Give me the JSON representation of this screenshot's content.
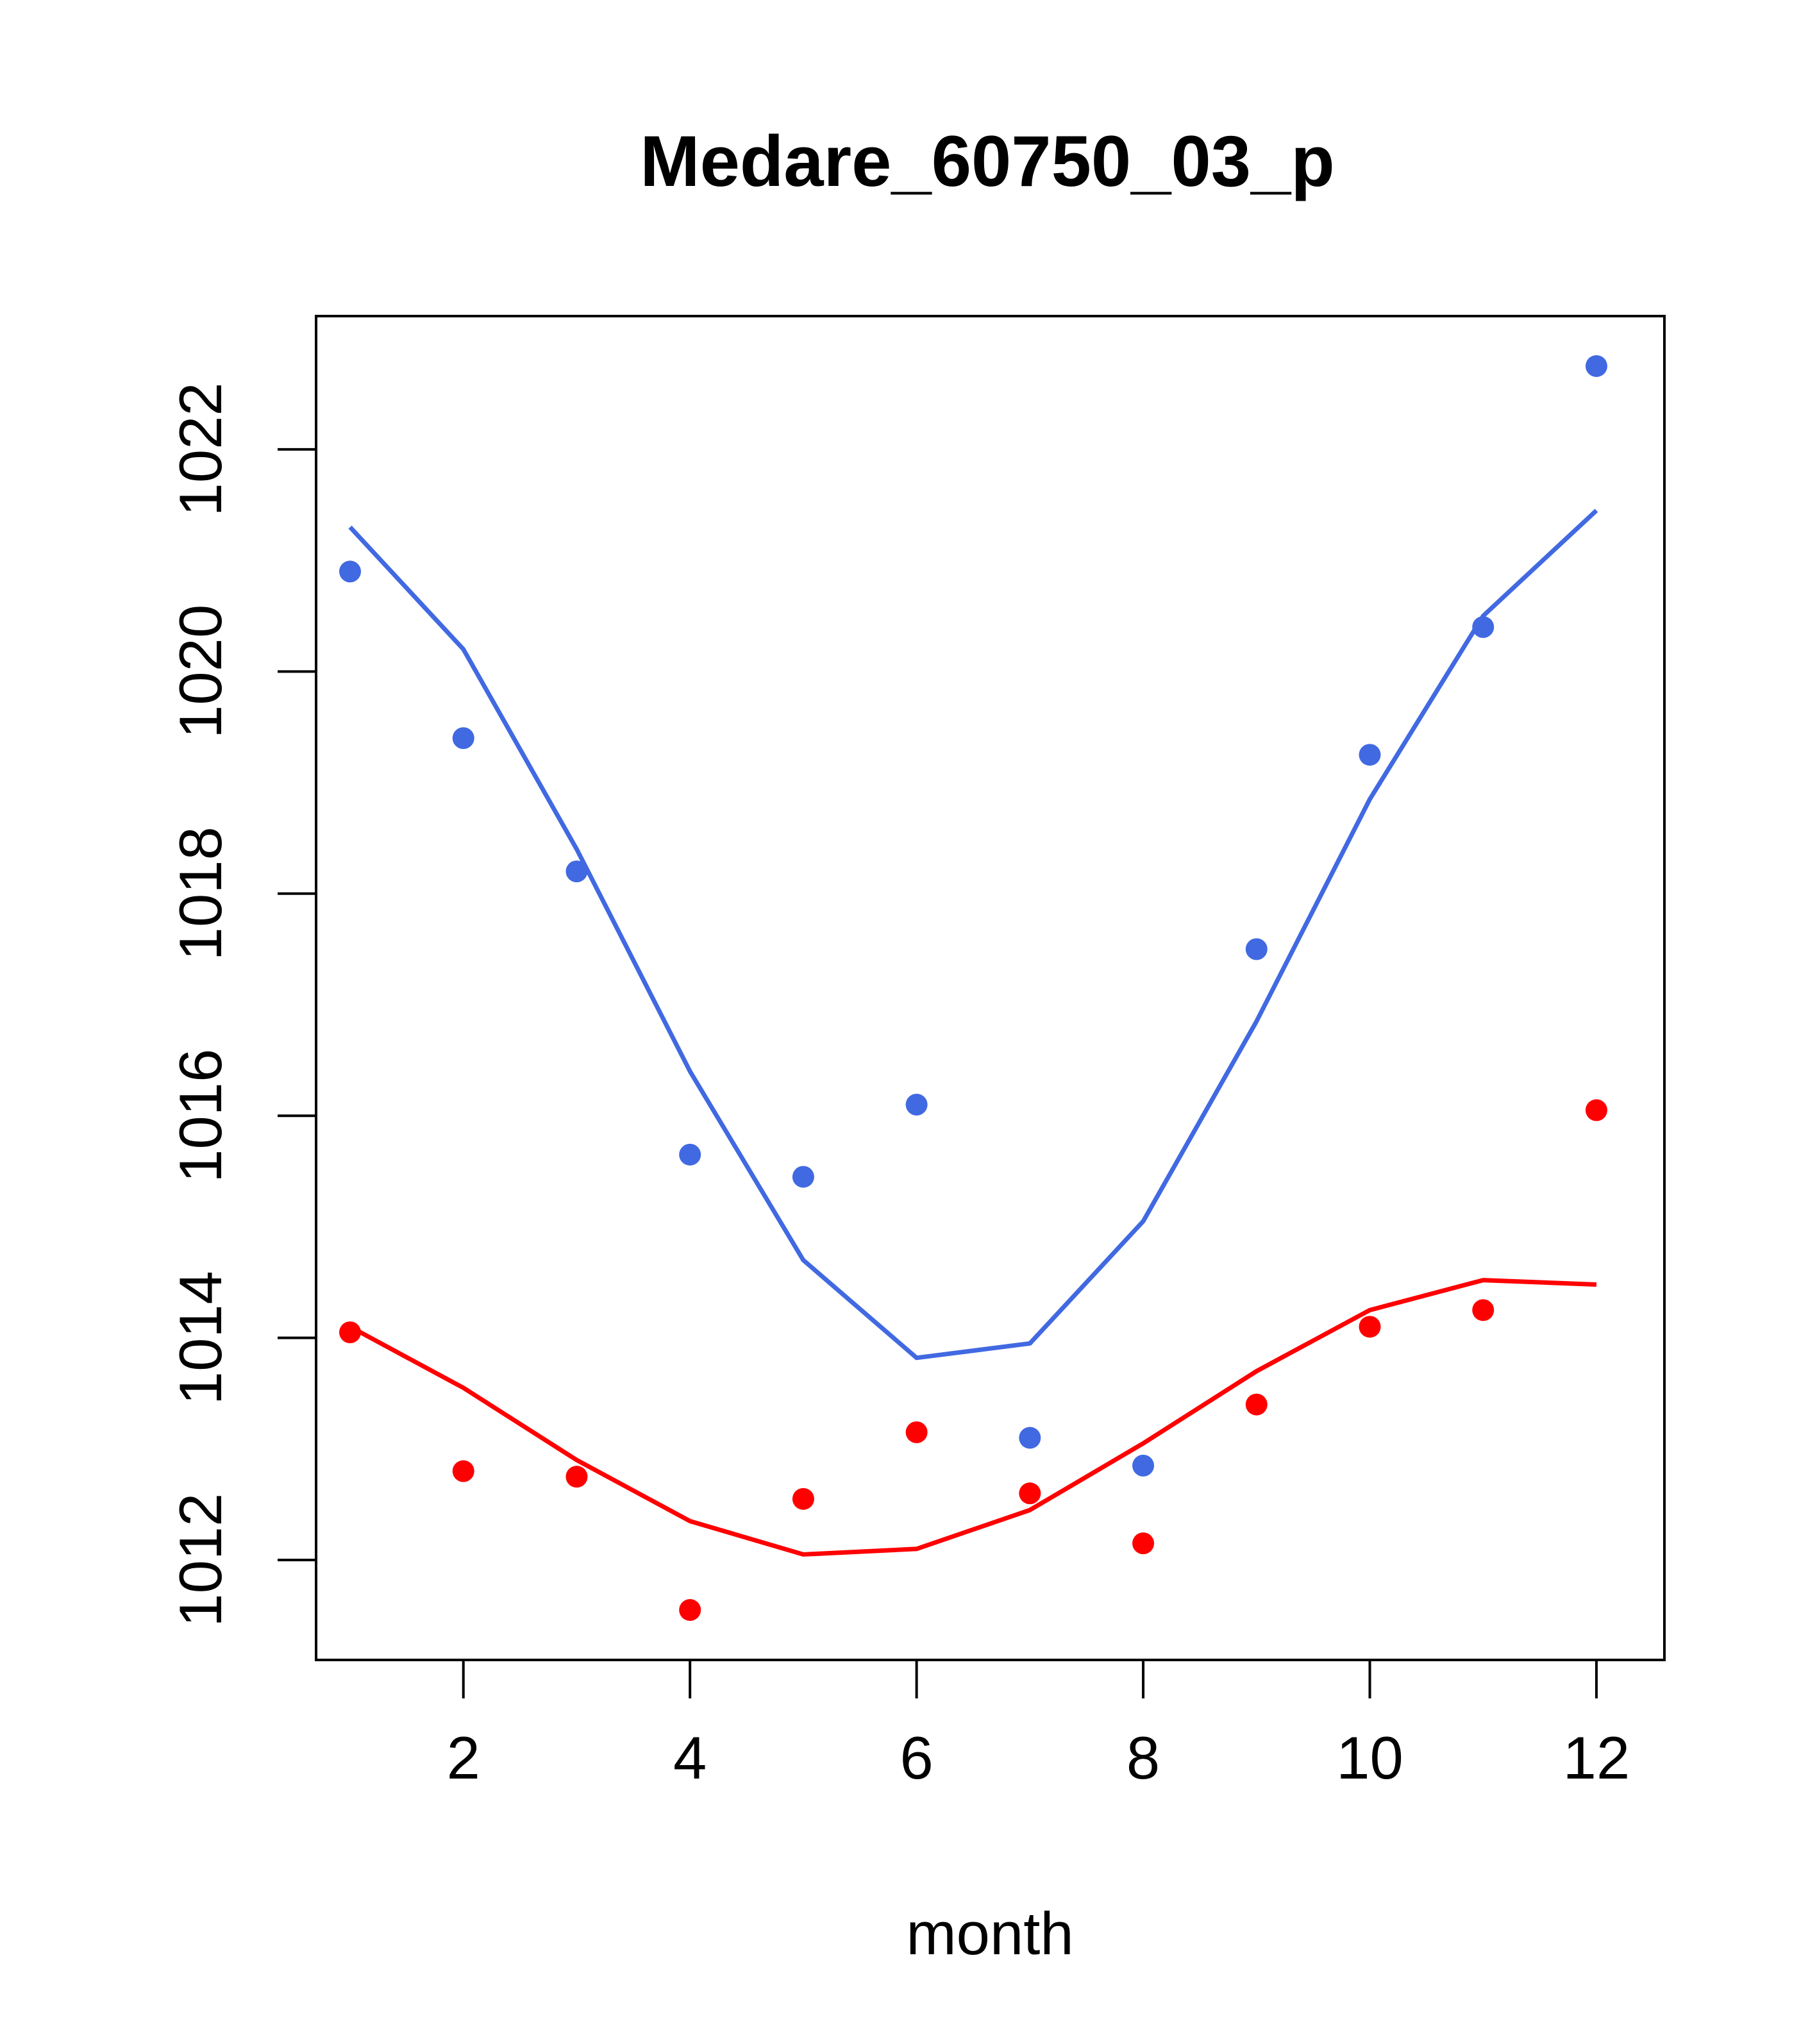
{
  "chart_data": {
    "type": "scatter",
    "title": "Medare_60750_03_p",
    "xlabel": "month",
    "ylabel": "",
    "xlim": [
      0.7,
      12.6
    ],
    "ylim": [
      1011.1,
      1023.2
    ],
    "x_ticks": [
      2,
      4,
      6,
      8,
      10,
      12
    ],
    "y_ticks": [
      1012,
      1014,
      1016,
      1018,
      1020,
      1022
    ],
    "grid": false,
    "series": [
      {
        "name": "blue points",
        "kind": "points",
        "color": "#4169E1",
        "x": [
          1,
          2,
          3,
          4,
          5,
          6,
          7,
          8,
          9,
          10,
          11,
          12
        ],
        "y": [
          1020.9,
          1019.4,
          1018.2,
          1015.65,
          1015.45,
          1016.1,
          1013.1,
          1012.85,
          1017.5,
          1019.25,
          1020.4,
          1022.75
        ]
      },
      {
        "name": "blue line",
        "kind": "line",
        "color": "#4169E1",
        "x": [
          1,
          2,
          3,
          4,
          5,
          6,
          7,
          8,
          9,
          10,
          11,
          12
        ],
        "y": [
          1021.3,
          1020.2,
          1018.4,
          1016.4,
          1014.7,
          1013.82,
          1013.95,
          1015.05,
          1016.85,
          1018.85,
          1020.5,
          1021.45
        ]
      },
      {
        "name": "red points",
        "kind": "points",
        "color": "#FF0000",
        "x": [
          1,
          2,
          3,
          4,
          5,
          6,
          7,
          8,
          9,
          10,
          11,
          12
        ],
        "y": [
          1014.05,
          1012.8,
          1012.75,
          1011.55,
          1012.55,
          1013.15,
          1012.6,
          1012.15,
          1013.4,
          1014.1,
          1014.25,
          1016.05
        ]
      },
      {
        "name": "red line",
        "kind": "line",
        "color": "#FF0000",
        "x": [
          1,
          2,
          3,
          4,
          5,
          6,
          7,
          8,
          9,
          10,
          11,
          12
        ],
        "y": [
          1014.1,
          1013.55,
          1012.9,
          1012.35,
          1012.05,
          1012.1,
          1012.45,
          1013.05,
          1013.7,
          1014.25,
          1014.52,
          1014.48
        ]
      }
    ]
  }
}
